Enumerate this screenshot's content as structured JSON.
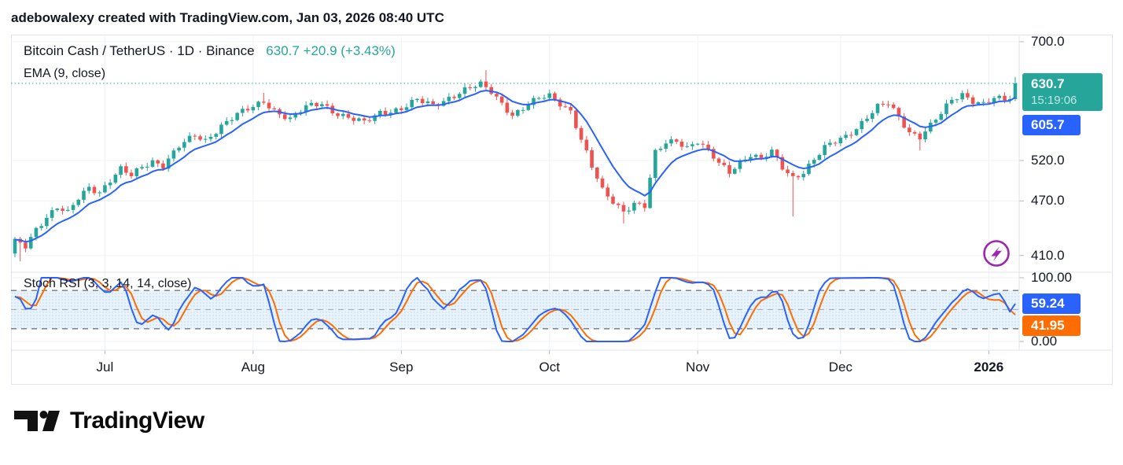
{
  "header": {
    "attribution": "adebowalexy created with TradingView.com, Jan 03, 2026 08:40 UTC"
  },
  "ui": {
    "symbol_text": "Bitcoin Cash / TetherUS · 1D · Binance",
    "change_text": "630.7  +20.9 (+3.43%)",
    "last_price": "630.7",
    "countdown": "15:19:06",
    "ema_price": "605.7",
    "stoch_k": "59.24",
    "stoch_d": "41.95",
    "price_ticks": [
      "700.0",
      "520.0",
      "470.0",
      "410.0"
    ],
    "stoch_ticks": [
      "100.00",
      "0.00"
    ],
    "logo_text": "TradingView"
  },
  "chart_data": {
    "type": "candlestick",
    "symbol": "Bitcoin Cash / TetherUS",
    "interval": "1D",
    "exchange": "Binance",
    "last_price": 630.7,
    "change": 20.9,
    "change_pct": 3.43,
    "bar_countdown": "15:19:06",
    "candle_count": 190,
    "first_candle_open": 412,
    "close_waypoints": [
      [
        0,
        424
      ],
      [
        2,
        420
      ],
      [
        4,
        439
      ],
      [
        6,
        452
      ],
      [
        8,
        462
      ],
      [
        10,
        455
      ],
      [
        12,
        473
      ],
      [
        14,
        487
      ],
      [
        16,
        481
      ],
      [
        18,
        495
      ],
      [
        20,
        508
      ],
      [
        22,
        500
      ],
      [
        24,
        512
      ],
      [
        26,
        520
      ],
      [
        28,
        514
      ],
      [
        31,
        538
      ],
      [
        34,
        553
      ],
      [
        36,
        547
      ],
      [
        39,
        568
      ],
      [
        42,
        583
      ],
      [
        45,
        594
      ],
      [
        47,
        604
      ],
      [
        49,
        590
      ],
      [
        52,
        576
      ],
      [
        55,
        594
      ],
      [
        58,
        601
      ],
      [
        60,
        589
      ],
      [
        63,
        578
      ],
      [
        66,
        571
      ],
      [
        69,
        587
      ],
      [
        73,
        592
      ],
      [
        76,
        604
      ],
      [
        79,
        597
      ],
      [
        82,
        609
      ],
      [
        85,
        620
      ],
      [
        88,
        628
      ],
      [
        90,
        618
      ],
      [
        92,
        601
      ],
      [
        94,
        583
      ],
      [
        96,
        592
      ],
      [
        99,
        607
      ],
      [
        101,
        612
      ],
      [
        103,
        601
      ],
      [
        105,
        589
      ],
      [
        107,
        547
      ],
      [
        109,
        511
      ],
      [
        111,
        482
      ],
      [
        113,
        470
      ],
      [
        115,
        459
      ],
      [
        117,
        467
      ],
      [
        119,
        463
      ],
      [
        121,
        529
      ],
      [
        123,
        544
      ],
      [
        125,
        548
      ],
      [
        127,
        538
      ],
      [
        129,
        545
      ],
      [
        131,
        531
      ],
      [
        133,
        516
      ],
      [
        135,
        506
      ],
      [
        137,
        519
      ],
      [
        139,
        528
      ],
      [
        141,
        521
      ],
      [
        143,
        531
      ],
      [
        145,
        511
      ],
      [
        147,
        499
      ],
      [
        149,
        506
      ],
      [
        151,
        521
      ],
      [
        153,
        536
      ],
      [
        155,
        545
      ],
      [
        157,
        553
      ],
      [
        159,
        565
      ],
      [
        161,
        580
      ],
      [
        163,
        594
      ],
      [
        165,
        599
      ],
      [
        167,
        579
      ],
      [
        169,
        559
      ],
      [
        171,
        553
      ],
      [
        173,
        568
      ],
      [
        175,
        584
      ],
      [
        177,
        604
      ],
      [
        179,
        614
      ],
      [
        181,
        605
      ],
      [
        183,
        600
      ],
      [
        185,
        607
      ],
      [
        187,
        604
      ],
      [
        188,
        607
      ],
      [
        189,
        630.7
      ]
    ],
    "wick_events": [
      {
        "index": 1,
        "low": 404
      },
      {
        "index": 47,
        "high": 616
      },
      {
        "index": 89,
        "high": 652
      },
      {
        "index": 115,
        "low": 444
      },
      {
        "index": 147,
        "low": 452
      },
      {
        "index": 171,
        "low": 533
      },
      {
        "index": 189,
        "high": 641
      }
    ],
    "price_axis": {
      "scale": "log",
      "ticks": [
        700.0,
        520.0,
        470.0,
        410.0
      ],
      "anchors": [
        [
          700,
          9
        ],
        [
          520,
          160
        ]
      ],
      "last_price_line": 630.7
    },
    "time_axis": {
      "months": [
        {
          "label": "Jul",
          "index": 17
        },
        {
          "label": "Aug",
          "index": 45
        },
        {
          "label": "Sep",
          "index": 73
        },
        {
          "label": "Oct",
          "index": 101
        },
        {
          "label": "Nov",
          "index": 129
        },
        {
          "label": "Dec",
          "index": 156
        },
        {
          "label": "2026",
          "index": 184,
          "bold": true
        }
      ]
    },
    "indicators": {
      "ema": {
        "label": "EMA (9, close)",
        "period": 9,
        "source": "close",
        "last": 605.7,
        "color": "#2962ff"
      },
      "stoch_rsi": {
        "label": "Stoch RSI (3, 3, 14, 14, close)",
        "k_smooth": 3,
        "d_smooth": 3,
        "rsi_length": 14,
        "stoch_length": 14,
        "source": "close",
        "k_last": 59.24,
        "d_last": 41.95,
        "k_color": "#2962ff",
        "d_color": "#ff6d00",
        "upper_band": 80,
        "middle_band": 50,
        "lower_band": 20,
        "range": [
          0,
          100
        ]
      }
    },
    "colors": {
      "up": "#26a69a",
      "down": "#ef5350",
      "grid": "#eef1f6",
      "border": "#e0e3eb",
      "text": "#131722",
      "dotted_price_line": "#26a69a",
      "band_fill": "#e9f3fb",
      "band_dot": "#b9d7ec",
      "dashed_level": "#75787f",
      "dashed_mid": "#aeb1bb",
      "axis_tick": "#b2b5be",
      "marker": "#9c27b0",
      "last_badge": "#26a69a",
      "ema_badge": "#2962ff",
      "k_badge": "#2962ff",
      "d_badge": "#ff6d00"
    }
  }
}
